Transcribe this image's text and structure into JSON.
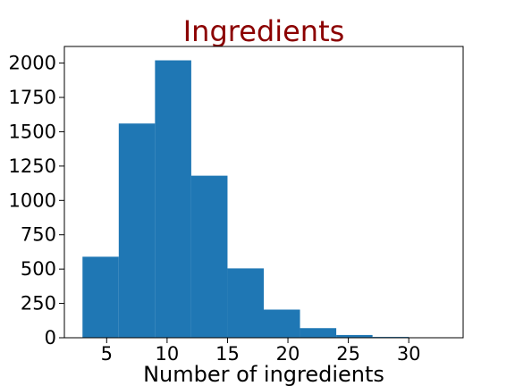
{
  "chart_data": {
    "type": "bar",
    "title": "Ingredients",
    "xlabel": "Number of ingredients",
    "ylabel": "",
    "bins": [
      {
        "x0": 3.0,
        "x1": 6.0,
        "count": 590
      },
      {
        "x0": 6.0,
        "x1": 9.0,
        "count": 1560
      },
      {
        "x0": 9.0,
        "x1": 12.0,
        "count": 2020
      },
      {
        "x0": 12.0,
        "x1": 15.0,
        "count": 1180
      },
      {
        "x0": 15.0,
        "x1": 18.0,
        "count": 505
      },
      {
        "x0": 18.0,
        "x1": 21.0,
        "count": 205
      },
      {
        "x0": 21.0,
        "x1": 24.0,
        "count": 70
      },
      {
        "x0": 24.0,
        "x1": 27.0,
        "count": 20
      },
      {
        "x0": 27.0,
        "x1": 30.0,
        "count": 6
      },
      {
        "x0": 30.0,
        "x1": 33.0,
        "count": 2
      }
    ],
    "xlim": [
      1.5,
      34.5
    ],
    "ylim": [
      0,
      2121
    ],
    "xticks": [
      5,
      10,
      15,
      20,
      25,
      30
    ],
    "yticks": [
      0,
      250,
      500,
      750,
      1000,
      1250,
      1500,
      1750,
      2000
    ],
    "bar_color": "#1f77b4",
    "title_color": "#8b0000",
    "grid": false
  }
}
